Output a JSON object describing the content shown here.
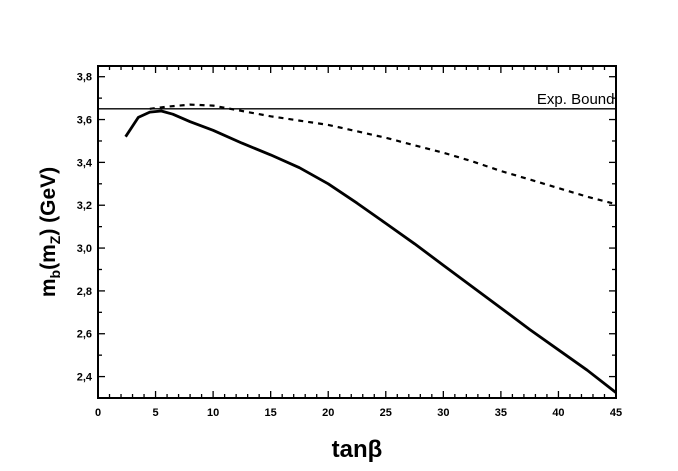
{
  "chart_data": {
    "type": "line",
    "xlabel": "tanβ",
    "ylabel_parts": {
      "m1": "m",
      "sub1": "b",
      "open": "(m",
      "sub2": "Z",
      "close": ") (GeV)"
    },
    "xlim": [
      0,
      45
    ],
    "ylim": [
      2.3,
      3.85
    ],
    "x_ticks": [
      0,
      5,
      10,
      15,
      20,
      25,
      30,
      35,
      40,
      45
    ],
    "x_tick_labels": [
      "0",
      "5",
      "10",
      "15",
      "20",
      "25",
      "30",
      "35",
      "40",
      "45"
    ],
    "y_ticks": [
      2.4,
      2.6,
      2.8,
      3.0,
      3.2,
      3.4,
      3.6,
      3.8
    ],
    "y_tick_labels": [
      "2,4",
      "2,6",
      "2,8",
      "3,0",
      "3,2",
      "3,4",
      "3,6",
      "3,8"
    ],
    "grid": false,
    "annotations": [
      {
        "text": "Exp. Bound",
        "x": 44,
        "y": 3.65
      }
    ],
    "series": [
      {
        "style": "solid",
        "x": [
          2.4,
          3.5,
          4.5,
          5.5,
          6.5,
          8,
          10,
          12.5,
          15,
          17.5,
          20,
          22.5,
          25,
          27.5,
          30,
          32.5,
          35,
          37.5,
          40,
          42.5,
          45
        ],
        "y": [
          3.52,
          3.61,
          3.635,
          3.64,
          3.625,
          3.59,
          3.55,
          3.49,
          3.435,
          3.375,
          3.3,
          3.21,
          3.115,
          3.02,
          2.92,
          2.82,
          2.72,
          2.62,
          2.525,
          2.43,
          2.325
        ]
      },
      {
        "style": "dashed",
        "x": [
          4.5,
          6,
          8,
          10,
          12,
          15,
          17.5,
          20,
          22.5,
          25,
          27.5,
          30,
          32.5,
          35,
          37.5,
          40,
          42.5,
          45
        ],
        "y": [
          3.65,
          3.66,
          3.67,
          3.665,
          3.645,
          3.615,
          3.595,
          3.575,
          3.545,
          3.515,
          3.48,
          3.445,
          3.405,
          3.36,
          3.32,
          3.28,
          3.24,
          3.205
        ]
      },
      {
        "style": "solid-thin",
        "x": [
          0,
          45
        ],
        "y": [
          3.65,
          3.65
        ]
      }
    ]
  }
}
